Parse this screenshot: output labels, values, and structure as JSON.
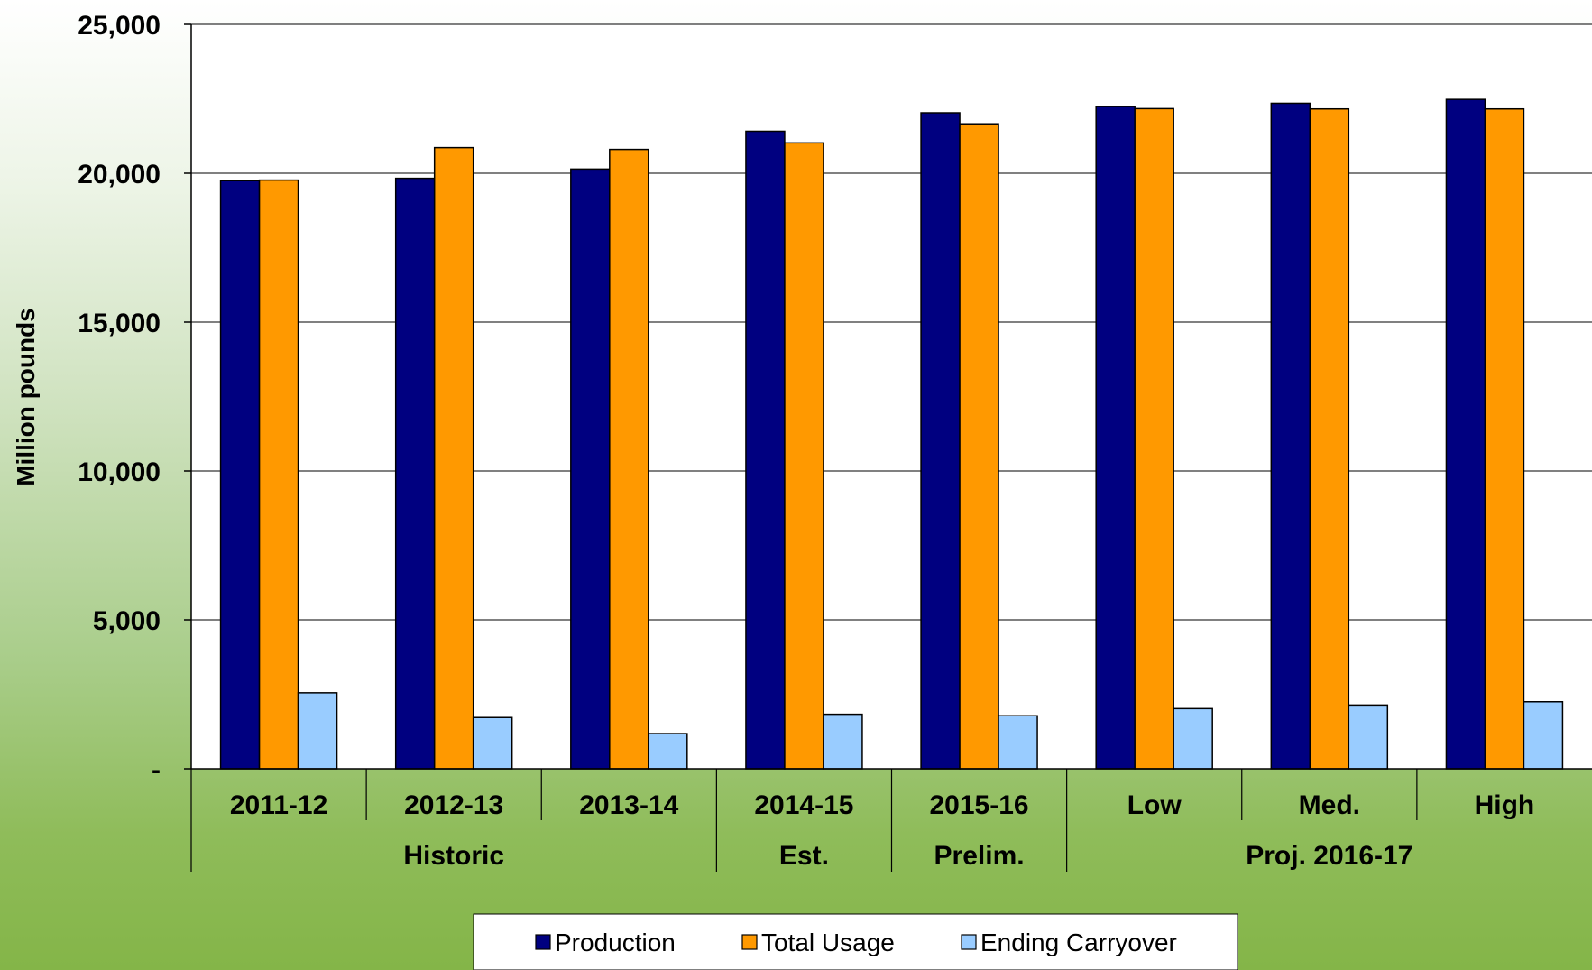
{
  "chart_data": {
    "type": "bar",
    "ylabel": "Million pounds",
    "ylim": [
      0,
      25000
    ],
    "yticks": [
      {
        "value": 0,
        "label": "-"
      },
      {
        "value": 5000,
        "label": "5,000"
      },
      {
        "value": 10000,
        "label": "10,000"
      },
      {
        "value": 15000,
        "label": "15,000"
      },
      {
        "value": 20000,
        "label": "20,000"
      },
      {
        "value": 25000,
        "label": "25,000"
      }
    ],
    "grid": true,
    "categories": [
      "2011-12",
      "2012-13",
      "2013-14",
      "2014-15",
      "2015-16",
      "Low",
      "Med.",
      "High"
    ],
    "groups": [
      {
        "label": "Historic",
        "categories": [
          "2011-12",
          "2012-13",
          "2013-14"
        ]
      },
      {
        "label": "Est.",
        "categories": [
          "2014-15"
        ]
      },
      {
        "label": "Prelim.",
        "categories": [
          "2015-16"
        ]
      },
      {
        "label": "Proj. 2016-17",
        "categories": [
          "Low",
          "Med.",
          "High"
        ]
      }
    ],
    "series": [
      {
        "name": "Production",
        "color": "#000080",
        "values": [
          19750,
          19830,
          20140,
          21410,
          22030,
          22240,
          22350,
          22480
        ]
      },
      {
        "name": "Total Usage",
        "color": "#FF9900",
        "values": [
          19770,
          20860,
          20800,
          21020,
          21660,
          22170,
          22160,
          22160
        ]
      },
      {
        "name": "Ending Carryover",
        "color": "#99CCFF",
        "values": [
          2550,
          1720,
          1180,
          1830,
          1780,
          2020,
          2140,
          2250
        ]
      }
    ],
    "legend_position": "bottom"
  }
}
